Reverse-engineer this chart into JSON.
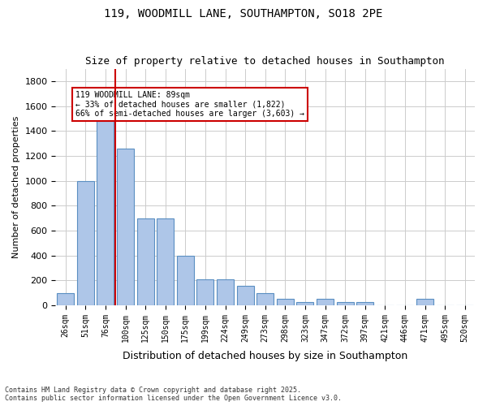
{
  "title1": "119, WOODMILL LANE, SOUTHAMPTON, SO18 2PE",
  "title2": "Size of property relative to detached houses in Southampton",
  "xlabel": "Distribution of detached houses by size in Southampton",
  "ylabel": "Number of detached properties",
  "categories": [
    "26sqm",
    "51sqm",
    "76sqm",
    "100sqm",
    "125sqm",
    "150sqm",
    "175sqm",
    "199sqm",
    "224sqm",
    "249sqm",
    "273sqm",
    "298sqm",
    "323sqm",
    "347sqm",
    "372sqm",
    "397sqm",
    "421sqm",
    "446sqm",
    "471sqm",
    "495sqm",
    "520sqm"
  ],
  "values": [
    100,
    1000,
    1500,
    1260,
    700,
    700,
    400,
    205,
    205,
    155,
    100,
    50,
    25,
    50,
    25,
    25,
    0,
    0,
    50,
    0,
    0
  ],
  "bar_color": "#aec6e8",
  "bar_edge_color": "#5a8fc2",
  "vline_x": 2,
  "vline_color": "#cc0000",
  "annotation_text": "119 WOODMILL LANE: 89sqm\n← 33% of detached houses are smaller (1,822)\n66% of semi-detached houses are larger (3,603) →",
  "annotation_box_color": "#ffffff",
  "annotation_box_edge": "#cc0000",
  "ylim": [
    0,
    1900
  ],
  "yticks": [
    0,
    200,
    400,
    600,
    800,
    1000,
    1200,
    1400,
    1600,
    1800
  ],
  "background_color": "#ffffff",
  "grid_color": "#cccccc",
  "footer1": "Contains HM Land Registry data © Crown copyright and database right 2025.",
  "footer2": "Contains public sector information licensed under the Open Government Licence v3.0."
}
